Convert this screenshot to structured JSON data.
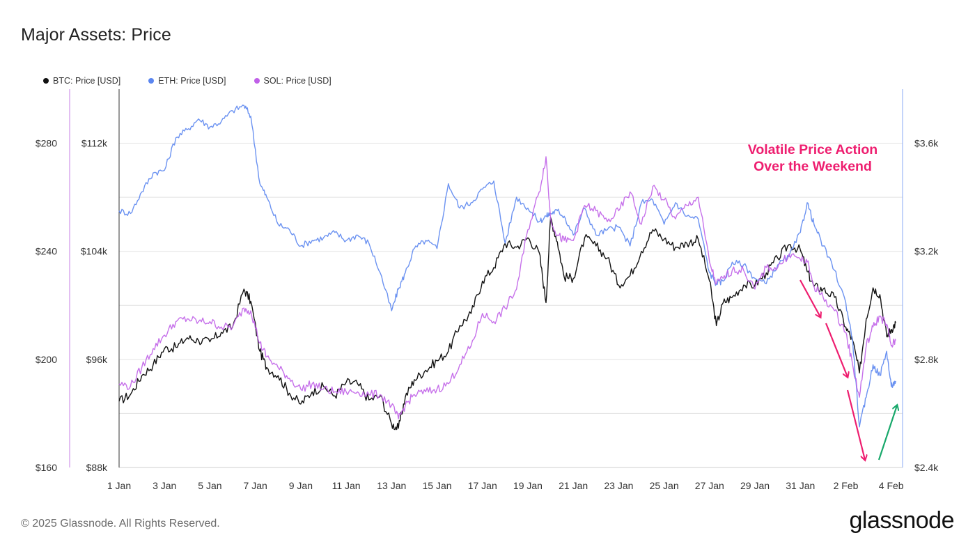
{
  "title": "Major Assets: Price",
  "legend": [
    {
      "label": "BTC: Price [USD]",
      "color": "#111111"
    },
    {
      "label": "ETH: Price [USD]",
      "color": "#5b86f0"
    },
    {
      "label": "SOL: Price [USD]",
      "color": "#c060e8"
    }
  ],
  "annotation": {
    "line1": "Volatile Price Action",
    "line2": "Over the Weekend",
    "color": "#ee1d6f"
  },
  "footer": "© 2025 Glassnode. All Rights Reserved.",
  "brand": "glassnode",
  "chart_data": {
    "type": "line",
    "x_ticks": [
      "1 Jan",
      "3 Jan",
      "5 Jan",
      "7 Jan",
      "9 Jan",
      "11 Jan",
      "13 Jan",
      "15 Jan",
      "17 Jan",
      "19 Jan",
      "21 Jan",
      "23 Jan",
      "25 Jan",
      "27 Jan",
      "29 Jan",
      "31 Jan",
      "2 Feb",
      "4 Feb"
    ],
    "sol_axis": {
      "ticks": [
        160,
        200,
        240,
        280
      ],
      "labels": [
        "$160",
        "$200",
        "$240",
        "$280"
      ],
      "range": [
        160,
        300
      ]
    },
    "btc_axis": {
      "ticks": [
        88,
        96,
        104,
        112
      ],
      "labels": [
        "$88k",
        "$96k",
        "$104k",
        "$112k"
      ],
      "range": [
        88,
        116
      ]
    },
    "eth_axis": {
      "ticks": [
        2.4,
        2.8,
        3.2,
        3.6
      ],
      "labels": [
        "$2.4k",
        "$2.8k",
        "$3.2k",
        "$3.6k"
      ],
      "range": [
        2.4,
        3.8
      ]
    },
    "grid": true,
    "series": [
      {
        "name": "BTC: Price [USD]",
        "axis": "btc",
        "color": "#111111",
        "x": [
          1.0,
          1.5,
          2.0,
          2.5,
          3.0,
          3.5,
          4.0,
          4.5,
          5.0,
          5.5,
          6.0,
          6.5,
          6.8,
          7.2,
          7.5,
          8.0,
          8.5,
          9.0,
          9.5,
          10.0,
          10.5,
          11.0,
          11.5,
          12.0,
          12.5,
          13.0,
          13.3,
          13.6,
          14.0,
          14.5,
          15.0,
          15.5,
          16.0,
          16.5,
          17.0,
          17.5,
          18.0,
          18.5,
          19.0,
          19.5,
          19.8,
          20.0,
          20.3,
          20.6,
          21.0,
          21.5,
          22.0,
          22.5,
          23.0,
          23.5,
          24.0,
          24.5,
          25.0,
          25.5,
          26.0,
          26.5,
          27.0,
          27.3,
          27.6,
          28.0,
          28.5,
          29.0,
          29.5,
          30.0,
          30.5,
          31.0,
          31.3,
          31.6,
          32.0,
          32.5,
          33.0,
          33.3,
          33.6,
          33.9,
          34.2,
          34.5,
          34.8,
          35.0,
          35.2
        ],
        "values": [
          92.9,
          93.4,
          94.8,
          95.6,
          96.8,
          96.9,
          97.6,
          97.4,
          97.3,
          98.0,
          98.4,
          101.2,
          100.3,
          96.6,
          95.4,
          94.8,
          93.5,
          92.7,
          93.6,
          94.0,
          93.3,
          94.3,
          94.2,
          93.0,
          93.3,
          91.2,
          90.9,
          93.2,
          94.5,
          95.2,
          95.9,
          96.6,
          98.5,
          99.4,
          101.8,
          102.8,
          104.6,
          104.3,
          105.0,
          103.9,
          100.2,
          106.5,
          104.7,
          102.1,
          102.0,
          105.0,
          104.4,
          103.5,
          101.5,
          102.2,
          104.0,
          105.6,
          104.9,
          104.3,
          104.6,
          104.9,
          101.8,
          98.5,
          100.2,
          100.6,
          101.5,
          101.5,
          102.4,
          103.5,
          104.5,
          104.1,
          102.5,
          101.4,
          101.2,
          100.6,
          98.4,
          97.4,
          95.0,
          99.0,
          101.3,
          100.8,
          97.7,
          98.2,
          98.7
        ]
      },
      {
        "name": "ETH: Price [USD]",
        "axis": "eth",
        "color": "#5b86f0",
        "x": [
          1.0,
          1.5,
          2.0,
          2.5,
          3.0,
          3.5,
          4.0,
          4.5,
          5.0,
          5.5,
          6.0,
          6.5,
          6.8,
          7.2,
          7.5,
          8.0,
          8.5,
          9.0,
          9.5,
          10.0,
          10.5,
          11.0,
          11.5,
          12.0,
          12.5,
          13.0,
          13.3,
          13.6,
          14.0,
          14.5,
          15.0,
          15.5,
          16.0,
          16.5,
          17.0,
          17.5,
          18.0,
          18.5,
          19.0,
          19.5,
          19.8,
          20.0,
          20.3,
          20.6,
          21.0,
          21.5,
          22.0,
          22.5,
          23.0,
          23.5,
          24.0,
          24.5,
          25.0,
          25.5,
          26.0,
          26.5,
          27.0,
          27.3,
          27.6,
          28.0,
          28.5,
          29.0,
          29.5,
          30.0,
          30.5,
          31.0,
          31.3,
          31.6,
          32.0,
          32.5,
          33.0,
          33.3,
          33.6,
          33.9,
          34.2,
          34.5,
          34.8,
          35.0,
          35.2
        ],
        "values": [
          3.35,
          3.34,
          3.42,
          3.49,
          3.5,
          3.62,
          3.65,
          3.69,
          3.66,
          3.68,
          3.72,
          3.74,
          3.7,
          3.45,
          3.4,
          3.3,
          3.28,
          3.22,
          3.24,
          3.25,
          3.27,
          3.24,
          3.26,
          3.23,
          3.12,
          2.98,
          3.06,
          3.12,
          3.21,
          3.24,
          3.21,
          3.45,
          3.36,
          3.38,
          3.43,
          3.46,
          3.23,
          3.4,
          3.36,
          3.31,
          3.33,
          3.34,
          3.35,
          3.33,
          3.26,
          3.36,
          3.26,
          3.28,
          3.29,
          3.22,
          3.38,
          3.39,
          3.3,
          3.38,
          3.33,
          3.32,
          3.12,
          3.08,
          3.09,
          3.16,
          3.15,
          3.1,
          3.08,
          3.15,
          3.18,
          3.27,
          3.38,
          3.3,
          3.22,
          3.13,
          3.01,
          2.87,
          2.55,
          2.66,
          2.78,
          2.74,
          2.83,
          2.7,
          2.72
        ]
      },
      {
        "name": "SOL: Price [USD]",
        "axis": "sol",
        "color": "#c060e8",
        "x": [
          1.0,
          1.5,
          2.0,
          2.5,
          3.0,
          3.5,
          4.0,
          4.5,
          5.0,
          5.5,
          6.0,
          6.5,
          6.8,
          7.2,
          7.5,
          8.0,
          8.5,
          9.0,
          9.5,
          10.0,
          10.5,
          11.0,
          11.5,
          12.0,
          12.5,
          13.0,
          13.3,
          13.6,
          14.0,
          14.5,
          15.0,
          15.5,
          16.0,
          16.5,
          17.0,
          17.5,
          18.0,
          18.5,
          19.0,
          19.5,
          19.8,
          20.0,
          20.3,
          20.6,
          21.0,
          21.5,
          22.0,
          22.5,
          23.0,
          23.5,
          24.0,
          24.5,
          25.0,
          25.5,
          26.0,
          26.5,
          27.0,
          27.3,
          27.6,
          28.0,
          28.5,
          29.0,
          29.5,
          30.0,
          30.5,
          31.0,
          31.3,
          31.6,
          32.0,
          32.5,
          33.0,
          33.3,
          33.6,
          33.9,
          34.2,
          34.5,
          34.8,
          35.0,
          35.2
        ],
        "values": [
          191,
          190,
          197,
          204,
          209,
          214,
          215,
          214,
          214,
          212,
          212,
          219,
          218,
          206,
          201,
          197,
          193,
          189,
          191,
          189,
          188,
          188,
          188,
          187,
          187,
          183,
          178,
          183,
          187,
          188,
          189,
          191,
          198,
          205,
          217,
          214,
          219,
          226,
          248,
          262,
          275,
          252,
          246,
          244,
          244,
          257,
          255,
          251,
          255,
          262,
          250,
          264,
          259,
          252,
          257,
          260,
          236,
          228,
          230,
          233,
          233,
          226,
          234,
          234,
          239,
          237,
          236,
          227,
          223,
          218,
          210,
          198,
          186,
          205,
          212,
          216,
          213,
          205,
          207
        ]
      }
    ]
  }
}
